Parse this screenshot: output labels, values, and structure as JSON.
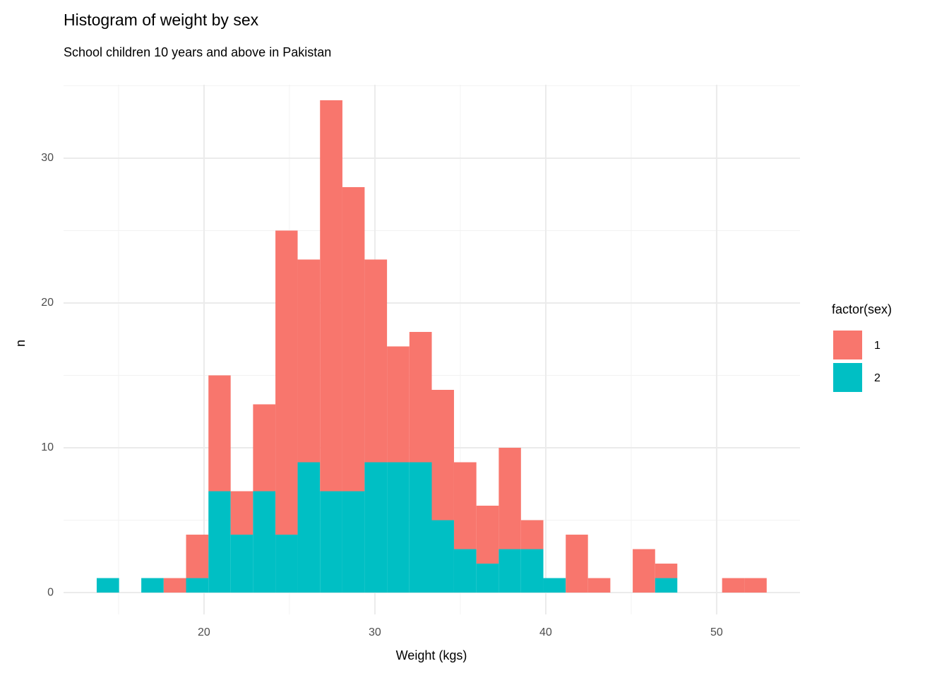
{
  "chart_data": {
    "type": "histogram",
    "title": "Histogram of weight by sex",
    "subtitle": "School children 10 years and above in Pakistan",
    "x_label": "Weight (kgs)",
    "y_label": "n",
    "legend_title": "factor(sex)",
    "stacked": true,
    "grid": true,
    "legend_position": "right",
    "bins": [
      13.72,
      15.03,
      16.33,
      17.64,
      18.95,
      20.26,
      21.56,
      22.87,
      24.18,
      25.48,
      26.79,
      28.1,
      29.4,
      30.71,
      32.02,
      33.33,
      34.63,
      35.94,
      37.25,
      38.55,
      39.86,
      41.17,
      42.47,
      43.78,
      45.09,
      46.4,
      47.7,
      49.01,
      50.32,
      51.62,
      52.93
    ],
    "series": [
      {
        "name": "1",
        "color": "#F8766D",
        "values": [
          0,
          0,
          0,
          1,
          3,
          8,
          3,
          6,
          21,
          14,
          27,
          21,
          14,
          8,
          9,
          9,
          6,
          4,
          7,
          2,
          0,
          4,
          1,
          0,
          3,
          1,
          0,
          0,
          1,
          1
        ]
      },
      {
        "name": "2",
        "color": "#00BFC4",
        "values": [
          1,
          0,
          1,
          0,
          1,
          7,
          4,
          7,
          4,
          9,
          7,
          7,
          9,
          9,
          9,
          5,
          3,
          2,
          3,
          3,
          1,
          0,
          0,
          0,
          0,
          1,
          0,
          0,
          0,
          0
        ]
      }
    ],
    "xlim": [
      11.78,
      54.88
    ],
    "xticks": [
      20,
      30,
      40,
      50
    ],
    "xminor": [
      15,
      25,
      35,
      45
    ],
    "ylim": [
      -1.51,
      35.07
    ],
    "yticks": [
      0,
      10,
      20,
      30
    ],
    "yminor": [
      5,
      15,
      25,
      35
    ]
  }
}
